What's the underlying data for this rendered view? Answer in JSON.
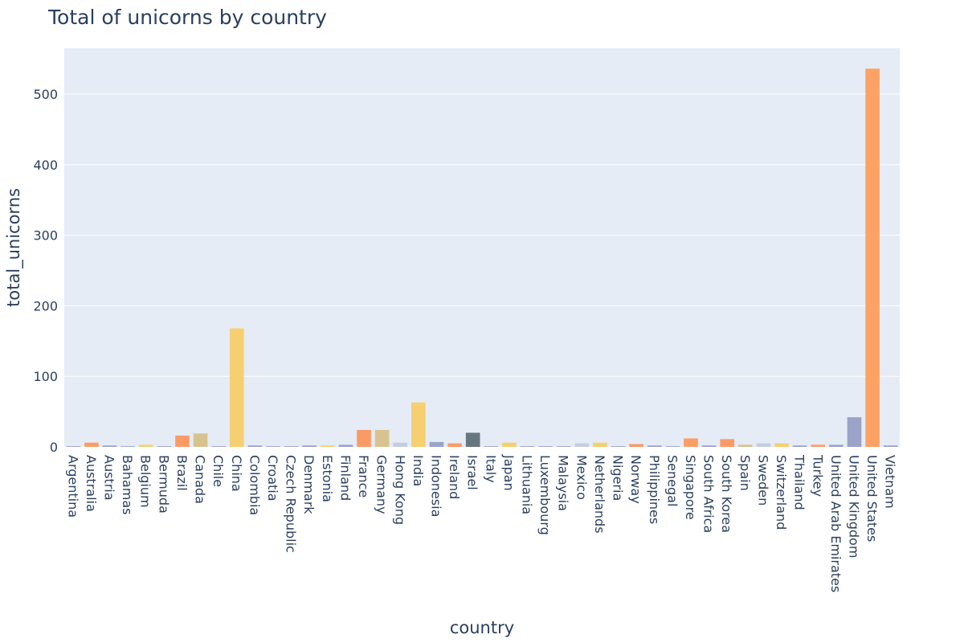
{
  "chart_data": {
    "type": "bar",
    "title": "Total of unicorns by country",
    "xlabel": "country",
    "ylabel": "total_unicorns",
    "ylim": [
      0,
      565
    ],
    "yticks": [
      0,
      100,
      200,
      300,
      400,
      500
    ],
    "grid": true,
    "legend": "none",
    "categories": [
      "Argentina",
      "Australia",
      "Austria",
      "Bahamas",
      "Belgium",
      "Bermuda",
      "Brazil",
      "Canada",
      "Chile",
      "China",
      "Colombia",
      "Croatia",
      "Czech Republic",
      "Denmark",
      "Estonia",
      "Finland",
      "France",
      "Germany",
      "Hong Kong",
      "India",
      "Indonesia",
      "Ireland",
      "Israel",
      "Italy",
      "Japan",
      "Lithuania",
      "Luxembourg",
      "Malaysia",
      "Mexico",
      "Netherlands",
      "Nigeria",
      "Norway",
      "Philippines",
      "Senegal",
      "Singapore",
      "South Africa",
      "South Korea",
      "Spain",
      "Sweden",
      "Switzerland",
      "Thailand",
      "Turkey",
      "United Arab Emirates",
      "United Kingdom",
      "United States",
      "Vietnam"
    ],
    "values": [
      1,
      6,
      2,
      1,
      3,
      1,
      16,
      19,
      1,
      168,
      2,
      1,
      1,
      2,
      2,
      3,
      24,
      24,
      6,
      63,
      7,
      5,
      20,
      1,
      6,
      1,
      1,
      1,
      5,
      6,
      1,
      4,
      2,
      1,
      12,
      2,
      11,
      3,
      5,
      5,
      2,
      3,
      3,
      42,
      536,
      2
    ],
    "colors": [
      "#9ba3c8",
      "#fc9d64",
      "#9ba3c8",
      "#9ba3c8",
      "#f6cf71",
      "#9ba3c8",
      "#fc9a66",
      "#d7c38f",
      "#9ba3c8",
      "#f6cf71",
      "#9ba3c8",
      "#9ba3c8",
      "#9ba3c8",
      "#9ba3c8",
      "#f6cf71",
      "#9ba3c8",
      "#fc9a66",
      "#d7c38f",
      "#c5cde0",
      "#f6cf71",
      "#9ba3c8",
      "#fc9a66",
      "#66777f",
      "#9ba3c8",
      "#f6cf71",
      "#9ba3c8",
      "#9ba3c8",
      "#9ba3c8",
      "#c5cde0",
      "#f6cf71",
      "#9ba3c8",
      "#fc9a66",
      "#9ba3c8",
      "#9ba3c8",
      "#fc9d64",
      "#9ba3c8",
      "#fc9a66",
      "#d7c38f",
      "#c5cde0",
      "#f6cf71",
      "#9ba3c8",
      "#fc9a66",
      "#9ba3c8",
      "#9ba3c8",
      "#fca264",
      "#9ba3c8"
    ]
  },
  "style": {
    "plot_bg": "#e5ecf6",
    "grid_color": "#ffffff",
    "text_color": "#2a3f5f"
  }
}
